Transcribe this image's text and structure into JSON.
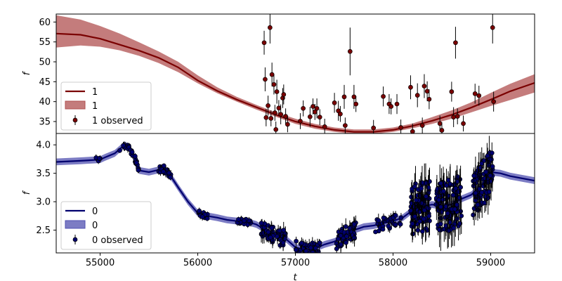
{
  "chart_data": [
    {
      "type": "line",
      "panel": "top",
      "xlabel": "",
      "ylabel": "f",
      "xlim": [
        54550,
        59450
      ],
      "ylim": [
        32,
        62
      ],
      "yticks": [
        "35",
        "40",
        "45",
        "50",
        "55",
        "60"
      ],
      "ytick_values": [
        35,
        40,
        45,
        50,
        55,
        60
      ],
      "colors": {
        "line": "#7a0000",
        "band": "#b05050",
        "points": "#7a0000"
      },
      "legend": {
        "position": "lower-left",
        "entries": [
          "1",
          "1",
          "1 observed"
        ]
      },
      "series": [
        {
          "name": "1",
          "kind": "mean",
          "x": [
            54550,
            54800,
            55000,
            55200,
            55400,
            55600,
            55800,
            56000,
            56200,
            56400,
            56600,
            56800,
            57000,
            57200,
            57400,
            57600,
            57800,
            58000,
            58200,
            58400,
            58600,
            58800,
            59000,
            59200,
            59450
          ],
          "y": [
            57.1,
            56.8,
            55.8,
            54.3,
            52.8,
            51.0,
            48.6,
            45.3,
            42.7,
            40.5,
            38.6,
            36.7,
            35.0,
            33.8,
            32.9,
            32.4,
            32.4,
            32.9,
            33.9,
            35.2,
            36.7,
            38.5,
            40.5,
            42.6,
            44.7
          ],
          "lower": [
            53.6,
            54.1,
            53.8,
            52.9,
            51.5,
            49.7,
            47.4,
            44.6,
            42.1,
            40.0,
            38.0,
            36.2,
            34.4,
            33.2,
            32.4,
            31.9,
            31.9,
            32.4,
            33.3,
            34.4,
            35.7,
            37.3,
            38.9,
            40.4,
            42.3
          ],
          "upper": [
            61.7,
            60.6,
            59.0,
            57.1,
            54.9,
            52.6,
            50.0,
            46.6,
            43.6,
            41.2,
            39.2,
            37.3,
            35.7,
            34.4,
            33.5,
            33.0,
            33.0,
            33.5,
            34.5,
            36.1,
            37.8,
            39.8,
            42.2,
            44.5,
            46.9
          ]
        }
      ],
      "observed": {
        "name": "1 observed",
        "points": [
          [
            56680,
            54.8,
            3.0
          ],
          [
            56690,
            45.6,
            3.0
          ],
          [
            56700,
            36.0,
            2.2
          ],
          [
            56720,
            39.0,
            2.5
          ],
          [
            56740,
            58.6,
            4.0
          ],
          [
            56750,
            35.8,
            2.0
          ],
          [
            56760,
            46.8,
            3.0
          ],
          [
            56780,
            44.3,
            2.5
          ],
          [
            56790,
            37.2,
            2.0
          ],
          [
            56800,
            33.0,
            2.0
          ],
          [
            56810,
            42.5,
            3.0
          ],
          [
            56830,
            38.4,
            2.0
          ],
          [
            56850,
            36.8,
            2.5
          ],
          [
            56870,
            40.9,
            2.5
          ],
          [
            56880,
            41.8,
            2.5
          ],
          [
            56900,
            36.3,
            2.0
          ],
          [
            56920,
            34.3,
            2.0
          ],
          [
            57050,
            35.1,
            2.0
          ],
          [
            57080,
            38.3,
            2.0
          ],
          [
            57150,
            36.2,
            2.5
          ],
          [
            57180,
            38.8,
            2.0
          ],
          [
            57200,
            37.4,
            2.0
          ],
          [
            57220,
            38.3,
            2.5
          ],
          [
            57250,
            36.1,
            2.0
          ],
          [
            57300,
            33.7,
            2.0
          ],
          [
            57400,
            39.7,
            2.5
          ],
          [
            57440,
            37.7,
            2.5
          ],
          [
            57460,
            36.9,
            2.0
          ],
          [
            57500,
            41.2,
            3.0
          ],
          [
            57510,
            34.0,
            2.0
          ],
          [
            57560,
            52.6,
            6.0
          ],
          [
            57600,
            41.2,
            3.0
          ],
          [
            57620,
            39.4,
            2.0
          ],
          [
            57800,
            33.4,
            2.0
          ],
          [
            57900,
            41.3,
            2.5
          ],
          [
            57960,
            39.4,
            2.5
          ],
          [
            57980,
            38.8,
            2.0
          ],
          [
            58040,
            39.4,
            2.5
          ],
          [
            58080,
            33.5,
            2.0
          ],
          [
            58180,
            43.6,
            3.0
          ],
          [
            58200,
            32.5,
            2.0
          ],
          [
            58250,
            41.6,
            3.0
          ],
          [
            58300,
            34.0,
            2.0
          ],
          [
            58320,
            43.9,
            3.0
          ],
          [
            58350,
            42.6,
            2.5
          ],
          [
            58370,
            40.6,
            2.5
          ],
          [
            58480,
            34.5,
            2.0
          ],
          [
            58500,
            32.8,
            2.0
          ],
          [
            58600,
            42.5,
            2.5
          ],
          [
            58620,
            36.1,
            2.5
          ],
          [
            58640,
            54.8,
            4.0
          ],
          [
            58660,
            36.3,
            2.0
          ],
          [
            58720,
            34.5,
            2.0
          ],
          [
            58840,
            42.0,
            2.5
          ],
          [
            58880,
            41.5,
            2.5
          ],
          [
            59020,
            58.6,
            4.0
          ],
          [
            59030,
            40.0,
            2.5
          ]
        ]
      }
    },
    {
      "type": "line",
      "panel": "bottom",
      "xlabel": "t",
      "ylabel": "f",
      "xlim": [
        54550,
        59450
      ],
      "ylim": [
        2.1,
        4.2
      ],
      "yticks": [
        "2.5",
        "3.0",
        "3.5",
        "4.0"
      ],
      "ytick_values": [
        2.5,
        3.0,
        3.5,
        4.0
      ],
      "xticks": [
        "55000",
        "56000",
        "57000",
        "58000",
        "59000"
      ],
      "xtick_values": [
        55000,
        56000,
        57000,
        58000,
        59000
      ],
      "colors": {
        "line": "#00006e",
        "band": "#5050b0",
        "points": "#00006e"
      },
      "legend": {
        "position": "lower-left",
        "entries": [
          "0",
          "0",
          "0 observed"
        ]
      },
      "series": [
        {
          "name": "0",
          "kind": "mean",
          "x": [
            54550,
            54800,
            55000,
            55050,
            55150,
            55250,
            55300,
            55350,
            55400,
            55500,
            55600,
            55650,
            55700,
            55750,
            55800,
            55900,
            56000,
            56100,
            56200,
            56300,
            56400,
            56500,
            56600,
            56700,
            56800,
            56900,
            57000,
            57100,
            57200,
            57300,
            57400,
            57500,
            57600,
            57700,
            57800,
            57900,
            58000,
            58100,
            58200,
            58300,
            58400,
            58500,
            58600,
            58700,
            58800,
            58900,
            59000,
            59100,
            59200,
            59450
          ],
          "y": [
            3.7,
            3.72,
            3.74,
            3.78,
            3.85,
            4.0,
            3.95,
            3.78,
            3.55,
            3.52,
            3.56,
            3.58,
            3.5,
            3.38,
            3.25,
            3.0,
            2.8,
            2.75,
            2.72,
            2.68,
            2.66,
            2.65,
            2.6,
            2.5,
            2.4,
            2.35,
            2.2,
            2.15,
            2.18,
            2.25,
            2.3,
            2.4,
            2.5,
            2.56,
            2.58,
            2.62,
            2.66,
            2.72,
            2.85,
            2.92,
            2.95,
            2.92,
            2.95,
            3.05,
            3.12,
            3.28,
            3.52,
            3.5,
            3.45,
            3.37
          ]
        }
      ],
      "observed": {
        "name": "0 observed"
      }
    }
  ]
}
